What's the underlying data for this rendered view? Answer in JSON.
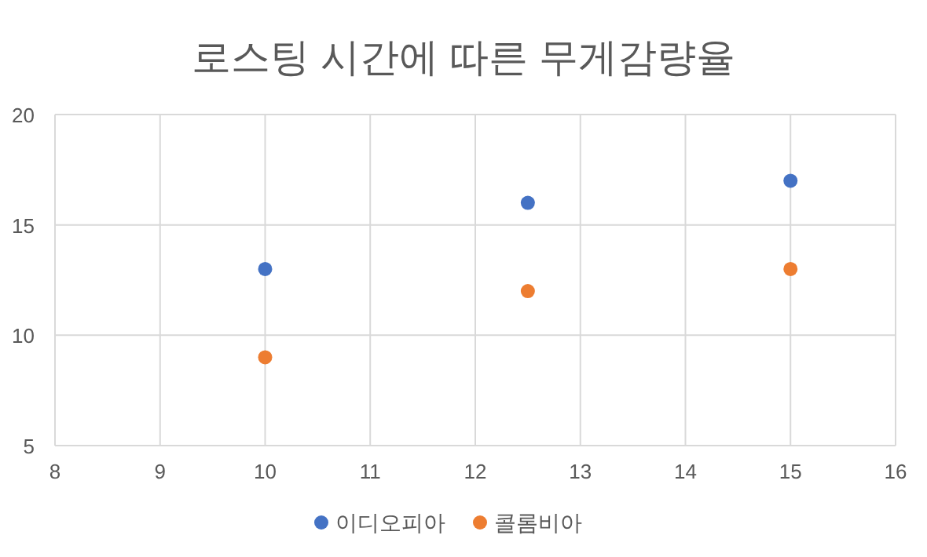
{
  "chart_data": {
    "type": "scatter",
    "title": "로스팅 시간에 따른 무게감량율",
    "series": [
      {
        "name": "이디오피아",
        "color": "#4472c4",
        "x": [
          10,
          12.5,
          15
        ],
        "values": [
          13,
          16,
          17
        ]
      },
      {
        "name": "콜롬비아",
        "color": "#ed7d31",
        "x": [
          10,
          12.5,
          15
        ],
        "values": [
          9,
          12,
          13
        ]
      }
    ],
    "xlim": [
      8,
      16
    ],
    "xticks": [
      8,
      9,
      10,
      11,
      12,
      13,
      14,
      15,
      16
    ],
    "ylim": [
      5,
      20
    ],
    "yticks": [
      5,
      10,
      15,
      20
    ],
    "grid": true,
    "legend": "bottom",
    "marker": "circle"
  }
}
